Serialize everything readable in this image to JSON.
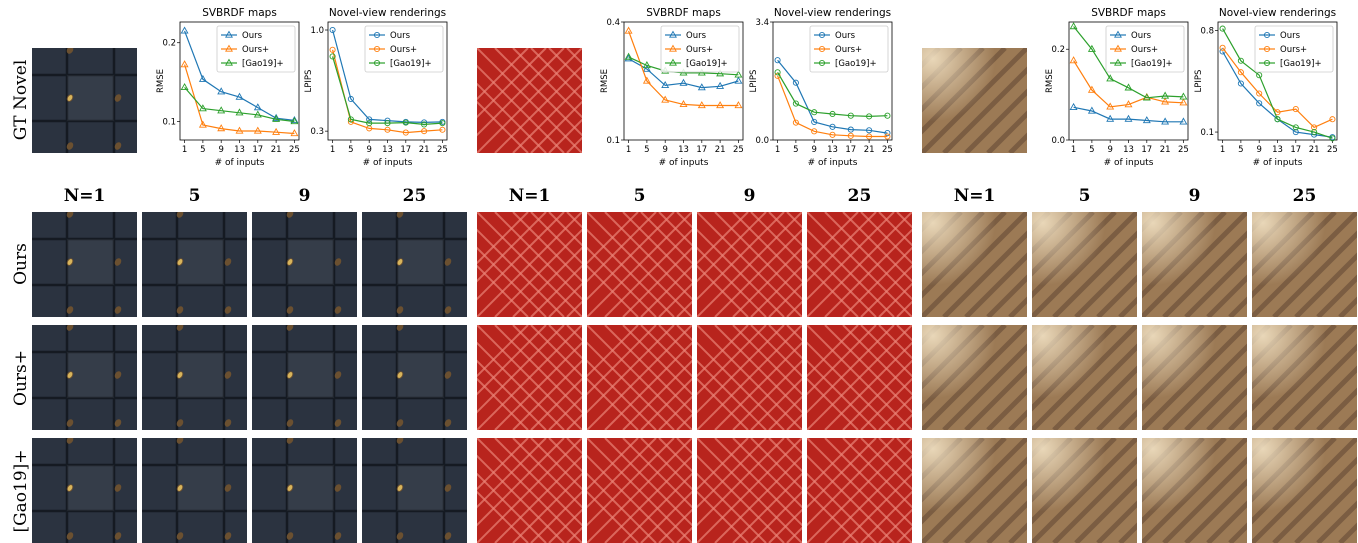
{
  "row_labels": [
    "GT Novel",
    "Ours",
    "Ours+",
    "[Gao19]+"
  ],
  "column_labels": [
    "N=1",
    "5",
    "9",
    "25"
  ],
  "colors": {
    "Ours": "#1f77b4",
    "Ours+": "#ff7f0e",
    "[Gao19]+": "#2ca02c"
  },
  "materials": [
    {
      "name": "leather",
      "base": "#2b3340",
      "accent": "#6b5030",
      "highlight": "#d8b55c"
    },
    {
      "name": "red",
      "base": "#c42a22",
      "accent": "#ff9a8a",
      "highlight": "#ffffff"
    },
    {
      "name": "wood",
      "base": "#9c7a55",
      "accent": "#5a4030",
      "highlight": "#f2e2c4"
    }
  ],
  "chart_data": [
    {
      "type": "line",
      "title": "SVBRDF maps",
      "xlabel": "# of inputs",
      "ylabel": "RMSE",
      "x": [
        1,
        5,
        9,
        13,
        17,
        21,
        25
      ],
      "yscale": "log",
      "ylim": [
        0.085,
        0.24
      ],
      "yticks": [
        0.1,
        0.2
      ],
      "ytick_labels": [
        "0.1",
        "0.2"
      ],
      "xticks": [
        1,
        5,
        9,
        13,
        17,
        21,
        25
      ],
      "legend": "top-right",
      "series": [
        {
          "name": "Ours",
          "marker": "triangle",
          "values": [
            0.222,
            0.145,
            0.13,
            0.124,
            0.113,
            0.103,
            0.101
          ]
        },
        {
          "name": "Ours+",
          "marker": "triangle",
          "values": [
            0.165,
            0.097,
            0.094,
            0.092,
            0.092,
            0.091,
            0.09
          ]
        },
        {
          "name": "[Gao19]+",
          "marker": "triangle",
          "values": [
            0.135,
            0.112,
            0.11,
            0.108,
            0.106,
            0.102,
            0.1
          ]
        }
      ]
    },
    {
      "type": "line",
      "title": "Novel-view renderings",
      "xlabel": "# of inputs",
      "ylabel": "LPIPS",
      "x": [
        1,
        5,
        9,
        13,
        17,
        21,
        25
      ],
      "yscale": "log",
      "ylim": [
        0.27,
        1.1
      ],
      "yticks": [
        0.3,
        1.0
      ],
      "ytick_labels": [
        "0.3",
        "1.0"
      ],
      "xticks": [
        1,
        5,
        9,
        13,
        17,
        21,
        25
      ],
      "legend": "top-right",
      "series": [
        {
          "name": "Ours",
          "marker": "circle",
          "values": [
            1.0,
            0.44,
            0.345,
            0.34,
            0.335,
            0.333,
            0.335
          ]
        },
        {
          "name": "Ours+",
          "marker": "circle",
          "values": [
            0.79,
            0.335,
            0.31,
            0.305,
            0.295,
            0.3,
            0.305
          ]
        },
        {
          "name": "[Gao19]+",
          "marker": "circle",
          "values": [
            0.73,
            0.345,
            0.33,
            0.33,
            0.332,
            0.325,
            0.33
          ]
        }
      ]
    },
    {
      "type": "line",
      "title": "SVBRDF maps",
      "xlabel": "# of inputs",
      "ylabel": "RMSE",
      "x": [
        1,
        5,
        9,
        13,
        17,
        21,
        25
      ],
      "yscale": "log",
      "ylim": [
        0.1,
        0.4
      ],
      "yticks": [
        0.1,
        0.4
      ],
      "ytick_labels": [
        "0.1",
        "0.4"
      ],
      "xticks": [
        1,
        5,
        9,
        13,
        17,
        21,
        25
      ],
      "legend": "top-right",
      "series": [
        {
          "name": "Ours",
          "marker": "triangle",
          "values": [
            0.26,
            0.23,
            0.19,
            0.195,
            0.185,
            0.188,
            0.2
          ]
        },
        {
          "name": "Ours+",
          "marker": "triangle",
          "values": [
            0.36,
            0.2,
            0.16,
            0.152,
            0.15,
            0.15,
            0.15
          ]
        },
        {
          "name": "[Gao19]+",
          "marker": "triangle",
          "values": [
            0.265,
            0.24,
            0.225,
            0.22,
            0.22,
            0.218,
            0.215
          ]
        }
      ]
    },
    {
      "type": "line",
      "title": "Novel-view renderings",
      "xlabel": "# of inputs",
      "ylabel": "LPIPS",
      "x": [
        1,
        5,
        9,
        13,
        17,
        21,
        25
      ],
      "yscale": "linear",
      "ylim": [
        0.0,
        3.4
      ],
      "yticks": [
        0.0,
        3.4
      ],
      "ytick_labels": [
        "0.0",
        "3.4"
      ],
      "xticks": [
        1,
        5,
        9,
        13,
        17,
        21,
        25
      ],
      "legend": "top-right",
      "series": [
        {
          "name": "Ours",
          "marker": "circle",
          "values": [
            2.3,
            1.65,
            0.52,
            0.38,
            0.3,
            0.28,
            0.2
          ]
        },
        {
          "name": "Ours+",
          "marker": "circle",
          "values": [
            1.85,
            0.5,
            0.25,
            0.15,
            0.12,
            0.1,
            0.1
          ]
        },
        {
          "name": "[Gao19]+",
          "marker": "circle",
          "values": [
            1.95,
            1.05,
            0.8,
            0.75,
            0.7,
            0.68,
            0.7
          ]
        }
      ]
    },
    {
      "type": "line",
      "title": "SVBRDF maps",
      "xlabel": "# of inputs",
      "ylabel": "RMSE",
      "x": [
        1,
        5,
        9,
        13,
        17,
        21,
        25
      ],
      "yscale": "linear",
      "ylim": [
        0.0,
        0.26
      ],
      "yticks": [
        0.0,
        0.2
      ],
      "ytick_labels": [
        "0.0",
        "0.2"
      ],
      "xticks": [
        1,
        5,
        9,
        13,
        17,
        21,
        25
      ],
      "legend": "top-right",
      "series": [
        {
          "name": "Ours",
          "marker": "triangle",
          "values": [
            0.072,
            0.064,
            0.046,
            0.046,
            0.043,
            0.04,
            0.04
          ]
        },
        {
          "name": "Ours+",
          "marker": "triangle",
          "values": [
            0.175,
            0.11,
            0.073,
            0.078,
            0.094,
            0.084,
            0.082
          ]
        },
        {
          "name": "[Gao19]+",
          "marker": "triangle",
          "values": [
            0.25,
            0.2,
            0.135,
            0.115,
            0.093,
            0.097,
            0.095
          ]
        }
      ]
    },
    {
      "type": "line",
      "title": "Novel-view renderings",
      "xlabel": "# of inputs",
      "ylabel": "LPIPS",
      "x": [
        1,
        5,
        9,
        13,
        17,
        21,
        25
      ],
      "yscale": "log",
      "ylim": [
        0.085,
        0.95
      ],
      "yticks": [
        0.1,
        0.8
      ],
      "ytick_labels": [
        "0.1",
        "0.8"
      ],
      "xticks": [
        1,
        5,
        9,
        13,
        17,
        21,
        25
      ],
      "legend": "top-right",
      "series": [
        {
          "name": "Ours",
          "marker": "circle",
          "values": [
            0.52,
            0.27,
            0.18,
            0.13,
            0.1,
            0.095,
            0.09
          ]
        },
        {
          "name": "Ours+",
          "marker": "circle",
          "values": [
            0.56,
            0.34,
            0.22,
            0.15,
            0.16,
            0.11,
            0.13
          ]
        },
        {
          "name": "[Gao19]+",
          "marker": "circle",
          "values": [
            0.83,
            0.43,
            0.32,
            0.13,
            0.11,
            0.1,
            0.088
          ]
        }
      ]
    }
  ]
}
